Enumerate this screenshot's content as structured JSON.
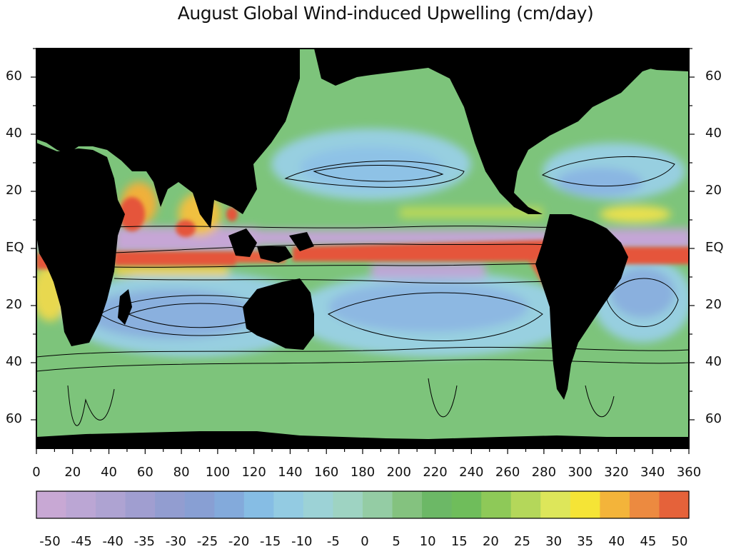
{
  "title": "August Global Wind-induced Upwelling (cm/day)",
  "lat_labels_left": [
    "60",
    "40",
    "20",
    "EQ",
    "20",
    "40",
    "60"
  ],
  "lat_labels_right": [
    "60",
    "40",
    "20",
    "EQ",
    "20",
    "40",
    "60"
  ],
  "lon_labels": [
    "0",
    "20",
    "40",
    "60",
    "80",
    "100",
    "120",
    "140",
    "160",
    "180",
    "200",
    "220",
    "240",
    "260",
    "280",
    "300",
    "320",
    "340",
    "360"
  ],
  "colorbar_labels": [
    "-50",
    "-45",
    "-40",
    "-35",
    "-30",
    "-25",
    "-20",
    "-15",
    "-10",
    "-5",
    "0",
    "5",
    "10",
    "15",
    "20",
    "25",
    "30",
    "35",
    "40",
    "45",
    "50"
  ],
  "colorbar_colors": [
    "#c8a8d4",
    "#bba6d4",
    "#aea3d2",
    "#a09ed0",
    "#929dd0",
    "#889fd3",
    "#83aadb",
    "#86bde4",
    "#93cbe2",
    "#9cd2d6",
    "#9ed3c2",
    "#94cca4",
    "#84c27f",
    "#6cb866",
    "#6fbd5b",
    "#8ec958",
    "#b4d75a",
    "#dde65a",
    "#f5e436",
    "#f3b43a",
    "#ec8a40",
    "#e5623a"
  ],
  "colors": {
    "land": "#000000",
    "ocean_base": "#7dc47b",
    "contour": "#000000"
  }
}
